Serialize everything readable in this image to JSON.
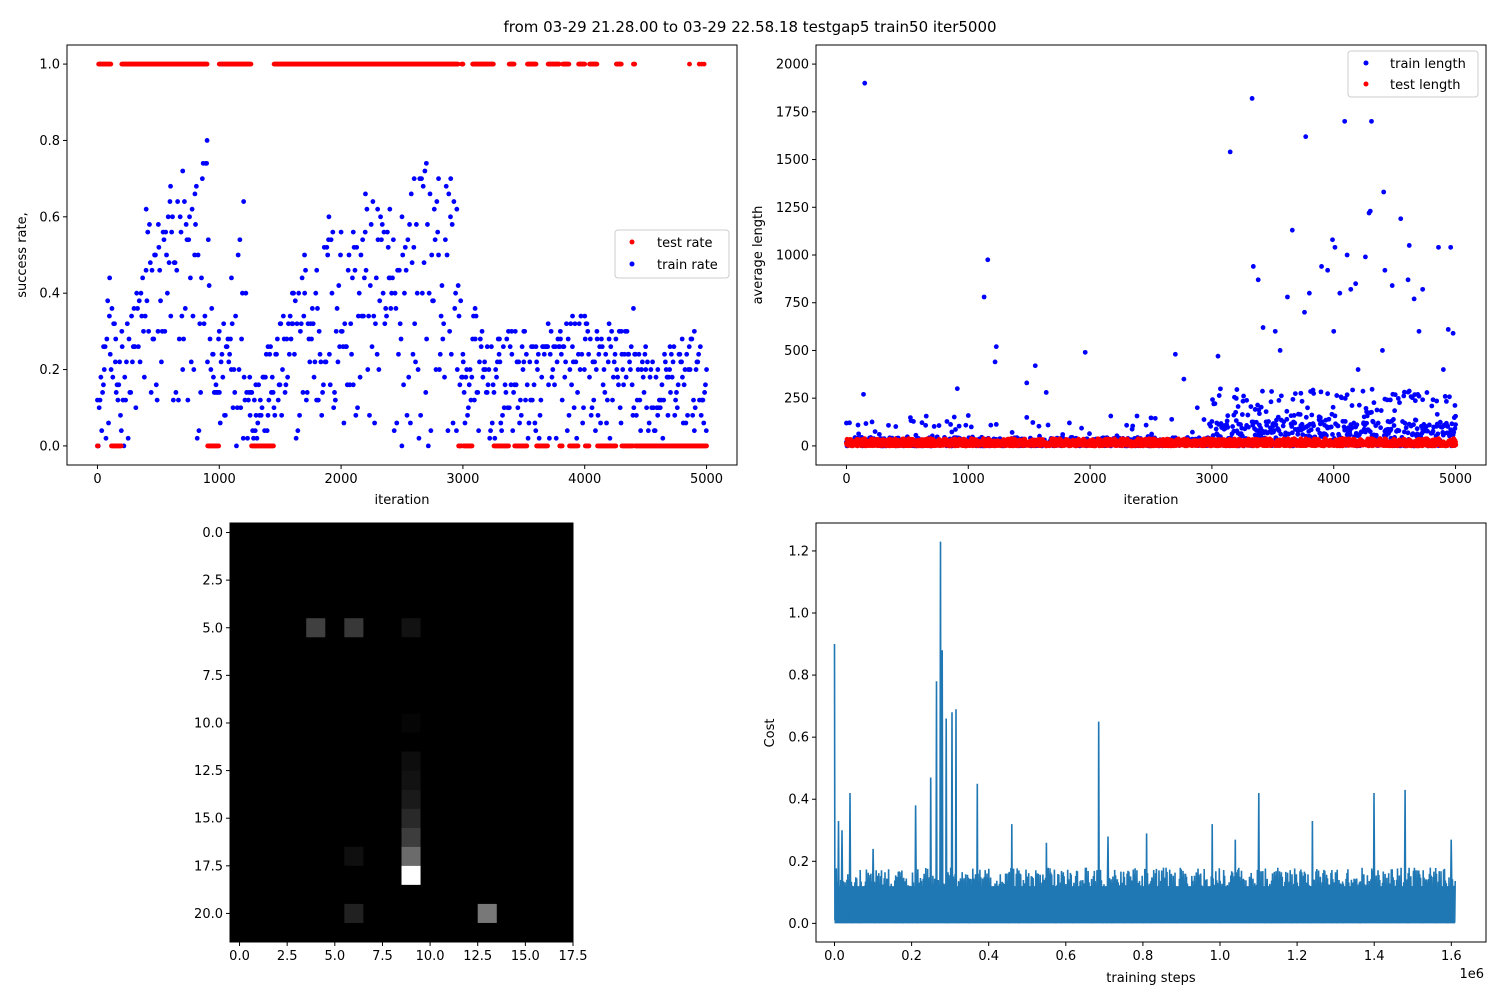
{
  "figure_title": "from 03-29 21.28.00 to 03-29 22.58.18 testgap5 train50 iter5000",
  "chart_data": [
    {
      "type": "scatter",
      "title": "",
      "xlabel": "iteration",
      "ylabel": "success rate,",
      "xlim": [
        -250,
        5250
      ],
      "ylim": [
        -0.05,
        1.05
      ],
      "x_ticks": [
        0,
        1000,
        2000,
        3000,
        4000,
        5000
      ],
      "x_tick_labels": [
        "0",
        "1000",
        "2000",
        "3000",
        "4000",
        "5000"
      ],
      "y_ticks": [
        0.0,
        0.2,
        0.4,
        0.6,
        0.8,
        1.0
      ],
      "y_tick_labels": [
        "0.0",
        "0.2",
        "0.4",
        "0.6",
        "0.8",
        "1.0"
      ],
      "legend_position": "center-right",
      "grid": false,
      "series": [
        {
          "name": "test rate",
          "color": "#ff0000",
          "marker": "dot",
          "points_description": "values are either 0.0 or 1.0 at every 5th iteration",
          "one_segments": [
            [
              10,
              110
            ],
            [
              200,
              900
            ],
            [
              1000,
              1260
            ],
            [
              1450,
              2960
            ],
            [
              2990,
              3000
            ],
            [
              3080,
              3250
            ],
            [
              3380,
              3420
            ],
            [
              3530,
              3600
            ],
            [
              3700,
              3790
            ],
            [
              3820,
              3870
            ],
            [
              3950,
              4000
            ],
            [
              4040,
              4100
            ],
            [
              4260,
              4300
            ],
            [
              4400,
              4410
            ]
          ],
          "value_when_not_one": 0.0
        },
        {
          "name": "train rate",
          "color": "#0000ff",
          "marker": "dot",
          "value_step": 0.02,
          "points_description": "train success rate every iteration, values are multiples of 0.02",
          "max_envelope": [
            [
              0,
              0.12
            ],
            [
              50,
              0.26
            ],
            [
              100,
              0.44
            ],
            [
              150,
              0.28
            ],
            [
              200,
              0.3
            ],
            [
              300,
              0.36
            ],
            [
              400,
              0.62
            ],
            [
              500,
              0.58
            ],
            [
              600,
              0.68
            ],
            [
              700,
              0.72
            ],
            [
              800,
              0.66
            ],
            [
              900,
              0.8
            ],
            [
              950,
              0.24
            ],
            [
              1000,
              0.3
            ],
            [
              1100,
              0.44
            ],
            [
              1200,
              0.64
            ],
            [
              1250,
              0.18
            ],
            [
              1300,
              0.16
            ],
            [
              1400,
              0.26
            ],
            [
              1500,
              0.32
            ],
            [
              1600,
              0.4
            ],
            [
              1700,
              0.5
            ],
            [
              1800,
              0.46
            ],
            [
              1900,
              0.6
            ],
            [
              2000,
              0.56
            ],
            [
              2100,
              0.56
            ],
            [
              2200,
              0.66
            ],
            [
              2300,
              0.62
            ],
            [
              2400,
              0.62
            ],
            [
              2500,
              0.6
            ],
            [
              2600,
              0.7
            ],
            [
              2700,
              0.74
            ],
            [
              2800,
              0.7
            ],
            [
              2900,
              0.7
            ],
            [
              2950,
              0.62
            ],
            [
              3000,
              0.24
            ],
            [
              3100,
              0.36
            ],
            [
              3200,
              0.26
            ],
            [
              3300,
              0.28
            ],
            [
              3400,
              0.3
            ],
            [
              3500,
              0.3
            ],
            [
              3600,
              0.26
            ],
            [
              3700,
              0.32
            ],
            [
              3800,
              0.3
            ],
            [
              3900,
              0.34
            ],
            [
              4000,
              0.34
            ],
            [
              4100,
              0.3
            ],
            [
              4200,
              0.32
            ],
            [
              4300,
              0.3
            ],
            [
              4400,
              0.36
            ],
            [
              4500,
              0.26
            ],
            [
              4600,
              0.2
            ],
            [
              4700,
              0.26
            ],
            [
              4800,
              0.28
            ],
            [
              4900,
              0.3
            ],
            [
              5000,
              0.2
            ]
          ],
          "min_value": 0.0
        }
      ]
    },
    {
      "type": "scatter",
      "title": "",
      "xlabel": "iteration",
      "ylabel": "average length",
      "xlim": [
        -250,
        5250
      ],
      "ylim": [
        -100,
        2100
      ],
      "x_ticks": [
        0,
        1000,
        2000,
        3000,
        4000,
        5000
      ],
      "x_tick_labels": [
        "0",
        "1000",
        "2000",
        "3000",
        "4000",
        "5000"
      ],
      "y_ticks": [
        0,
        250,
        500,
        750,
        1000,
        1250,
        1500,
        1750,
        2000
      ],
      "y_tick_labels": [
        "0",
        "250",
        "500",
        "750",
        "1000",
        "1250",
        "1500",
        "1750",
        "2000"
      ],
      "legend_position": "top-right",
      "grid": false,
      "series": [
        {
          "name": "train length",
          "color": "#0000ff",
          "marker": "dot",
          "outliers": [
            [
              150,
              1900
            ],
            [
              140,
              270
            ],
            [
              910,
              300
            ],
            [
              1130,
              780
            ],
            [
              1160,
              975
            ],
            [
              1230,
              520
            ],
            [
              1220,
              440
            ],
            [
              1550,
              420
            ],
            [
              1480,
              330
            ],
            [
              1960,
              490
            ],
            [
              1640,
              280
            ],
            [
              2700,
              480
            ],
            [
              2770,
              350
            ],
            [
              2880,
              200
            ],
            [
              3050,
              470
            ],
            [
              3150,
              1540
            ],
            [
              3330,
              1820
            ],
            [
              3340,
              940
            ],
            [
              3380,
              870
            ],
            [
              3420,
              620
            ],
            [
              3520,
              600
            ],
            [
              3560,
              500
            ],
            [
              3620,
              780
            ],
            [
              3660,
              1130
            ],
            [
              3760,
              700
            ],
            [
              3770,
              1620
            ],
            [
              3800,
              800
            ],
            [
              3900,
              940
            ],
            [
              3950,
              920
            ],
            [
              3990,
              1080
            ],
            [
              4010,
              1040
            ],
            [
              4050,
              800
            ],
            [
              4090,
              1700
            ],
            [
              4110,
              1000
            ],
            [
              4140,
              820
            ],
            [
              4180,
              850
            ],
            [
              4260,
              990
            ],
            [
              4290,
              1220
            ],
            [
              4300,
              1230
            ],
            [
              4310,
              1700
            ],
            [
              4410,
              1330
            ],
            [
              4420,
              920
            ],
            [
              4480,
              840
            ],
            [
              4550,
              1190
            ],
            [
              4610,
              870
            ],
            [
              4620,
              1050
            ],
            [
              4660,
              770
            ],
            [
              4730,
              820
            ],
            [
              4860,
              1040
            ],
            [
              4960,
              1040
            ],
            [
              4940,
              610
            ],
            [
              4980,
              590
            ],
            [
              4000,
              600
            ],
            [
              4200,
              400
            ],
            [
              4400,
              500
            ],
            [
              4700,
              600
            ],
            [
              4900,
              400
            ]
          ],
          "bulk_description": "dense band near 0–60 for iterations 0–2900, spreading to 0–250 after 3000"
        },
        {
          "name": "test length",
          "color": "#ff0000",
          "marker": "dot",
          "bulk_description": "dense band from 0 to about 40 across all iterations"
        }
      ]
    },
    {
      "type": "heatmap",
      "title": "",
      "colormap": "gray",
      "rows": 22,
      "cols": 18,
      "xlim": [
        -0.5,
        17.5
      ],
      "ylim": [
        21.5,
        -0.5
      ],
      "x_ticks": [
        0.0,
        2.5,
        5.0,
        7.5,
        10.0,
        12.5,
        15.0,
        17.5
      ],
      "x_tick_labels": [
        "0.0",
        "2.5",
        "5.0",
        "7.5",
        "10.0",
        "12.5",
        "15.0",
        "17.5"
      ],
      "y_ticks": [
        0.0,
        2.5,
        5.0,
        7.5,
        10.0,
        12.5,
        15.0,
        17.5,
        20.0
      ],
      "y_tick_labels": [
        "0.0",
        "2.5",
        "5.0",
        "7.5",
        "10.0",
        "12.5",
        "15.0",
        "17.5",
        "20.0"
      ],
      "nonzero_cells": [
        {
          "row": 5,
          "col": 4,
          "value": 0.25
        },
        {
          "row": 5,
          "col": 6,
          "value": 0.22
        },
        {
          "row": 5,
          "col": 9,
          "value": 0.07
        },
        {
          "row": 10,
          "col": 9,
          "value": 0.02
        },
        {
          "row": 12,
          "col": 9,
          "value": 0.05
        },
        {
          "row": 13,
          "col": 9,
          "value": 0.07
        },
        {
          "row": 14,
          "col": 9,
          "value": 0.1
        },
        {
          "row": 15,
          "col": 9,
          "value": 0.16
        },
        {
          "row": 16,
          "col": 9,
          "value": 0.24
        },
        {
          "row": 17,
          "col": 6,
          "value": 0.06
        },
        {
          "row": 17,
          "col": 9,
          "value": 0.42
        },
        {
          "row": 18,
          "col": 9,
          "value": 1.0
        },
        {
          "row": 20,
          "col": 6,
          "value": 0.13
        },
        {
          "row": 20,
          "col": 13,
          "value": 0.47
        }
      ]
    },
    {
      "type": "line",
      "title": "",
      "xlabel": "training steps",
      "ylabel": "Cost",
      "x_offset_label": "1e6",
      "xlim": [
        -0.048,
        1.69
      ],
      "ylim": [
        -0.06,
        1.29
      ],
      "x_ticks": [
        0.0,
        0.2,
        0.4,
        0.6,
        0.8,
        1.0,
        1.2,
        1.4,
        1.6
      ],
      "x_tick_labels": [
        "0.0",
        "0.2",
        "0.4",
        "0.6",
        "0.8",
        "1.0",
        "1.2",
        "1.4",
        "1.6"
      ],
      "y_ticks": [
        0.0,
        0.2,
        0.4,
        0.6,
        0.8,
        1.0,
        1.2
      ],
      "y_tick_labels": [
        "0.0",
        "0.2",
        "0.4",
        "0.6",
        "0.8",
        "1.0",
        "1.2"
      ],
      "grid": false,
      "series": [
        {
          "name": "",
          "color": "#1f77b4",
          "x_range": [
            0.0,
            1.61
          ],
          "baseline_low": 0.0,
          "typical_high": 0.18,
          "peaks": [
            [
              0.0,
              0.9
            ],
            [
              0.01,
              0.33
            ],
            [
              0.02,
              0.3
            ],
            [
              0.04,
              0.42
            ],
            [
              0.1,
              0.24
            ],
            [
              0.21,
              0.38
            ],
            [
              0.25,
              0.47
            ],
            [
              0.265,
              0.78
            ],
            [
              0.275,
              1.23
            ],
            [
              0.28,
              0.88
            ],
            [
              0.29,
              0.66
            ],
            [
              0.305,
              0.68
            ],
            [
              0.315,
              0.69
            ],
            [
              0.37,
              0.45
            ],
            [
              0.46,
              0.32
            ],
            [
              0.55,
              0.26
            ],
            [
              0.685,
              0.65
            ],
            [
              0.71,
              0.28
            ],
            [
              0.81,
              0.29
            ],
            [
              0.98,
              0.32
            ],
            [
              1.04,
              0.27
            ],
            [
              1.1,
              0.42
            ],
            [
              1.24,
              0.33
            ],
            [
              1.4,
              0.42
            ],
            [
              1.48,
              0.43
            ],
            [
              1.6,
              0.27
            ]
          ]
        }
      ]
    }
  ]
}
